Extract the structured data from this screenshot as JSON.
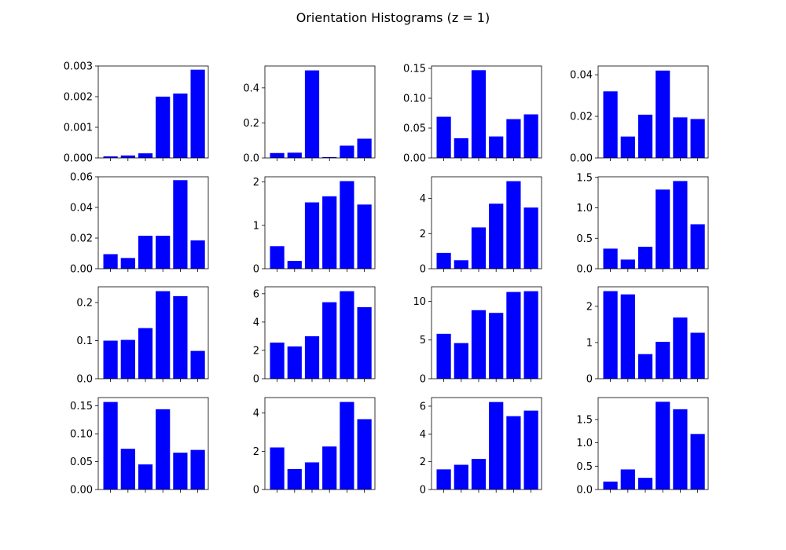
{
  "figure": {
    "title": "Orientation Histograms (z = 1)",
    "bar_color": "#0000ff",
    "rows": 4,
    "cols": 4
  },
  "chart_data": [
    {
      "type": "bar",
      "values": [
        5e-05,
        8e-05,
        0.00015,
        0.002,
        0.0021,
        0.00288
      ],
      "ylim": [
        0,
        0.003
      ],
      "yticks": [
        0,
        0.001,
        0.002,
        0.003
      ],
      "ytick_labels": [
        "0.000",
        "0.001",
        "0.002",
        "0.003"
      ]
    },
    {
      "type": "bar",
      "values": [
        0.028,
        0.03,
        0.5,
        0.005,
        0.07,
        0.11
      ],
      "ylim": [
        0,
        0.525
      ],
      "yticks": [
        0,
        0.2,
        0.4
      ],
      "ytick_labels": [
        "0.0",
        "0.2",
        "0.4"
      ]
    },
    {
      "type": "bar",
      "values": [
        0.069,
        0.033,
        0.147,
        0.036,
        0.065,
        0.073
      ],
      "ylim": [
        0,
        0.154
      ],
      "yticks": [
        0,
        0.05,
        0.1,
        0.15
      ],
      "ytick_labels": [
        "0.00",
        "0.05",
        "0.10",
        "0.15"
      ]
    },
    {
      "type": "bar",
      "values": [
        0.032,
        0.0103,
        0.0208,
        0.042,
        0.0195,
        0.0187
      ],
      "ylim": [
        0,
        0.0442
      ],
      "yticks": [
        0,
        0.02,
        0.04
      ],
      "ytick_labels": [
        "0.00",
        "0.02",
        "0.04"
      ]
    },
    {
      "type": "bar",
      "values": [
        0.0095,
        0.007,
        0.0215,
        0.0215,
        0.0578,
        0.0185
      ],
      "ylim": [
        0,
        0.06
      ],
      "yticks": [
        0,
        0.02,
        0.04,
        0.06
      ],
      "ytick_labels": [
        "0.00",
        "0.02",
        "0.04",
        "0.06"
      ]
    },
    {
      "type": "bar",
      "values": [
        0.52,
        0.18,
        1.53,
        1.67,
        2.02,
        1.48
      ],
      "ylim": [
        0,
        2.12
      ],
      "yticks": [
        0,
        1,
        2
      ],
      "ytick_labels": [
        "0",
        "1",
        "2"
      ]
    },
    {
      "type": "bar",
      "values": [
        0.9,
        0.48,
        2.35,
        3.7,
        4.98,
        3.48
      ],
      "ylim": [
        0,
        5.23
      ],
      "yticks": [
        0,
        2,
        4
      ],
      "ytick_labels": [
        "0",
        "2",
        "4"
      ]
    },
    {
      "type": "bar",
      "values": [
        0.33,
        0.15,
        0.36,
        1.3,
        1.44,
        0.73
      ],
      "ylim": [
        0,
        1.51
      ],
      "yticks": [
        0,
        0.5,
        1.0,
        1.5
      ],
      "ytick_labels": [
        "0.0",
        "0.5",
        "1.0",
        "1.5"
      ]
    },
    {
      "type": "bar",
      "values": [
        0.1,
        0.102,
        0.133,
        0.23,
        0.217,
        0.073
      ],
      "ylim": [
        0,
        0.2415
      ],
      "yticks": [
        0,
        0.1,
        0.2
      ],
      "ytick_labels": [
        "0.0",
        "0.1",
        "0.2"
      ]
    },
    {
      "type": "bar",
      "values": [
        2.55,
        2.28,
        3.0,
        5.4,
        6.18,
        5.05
      ],
      "ylim": [
        0,
        6.49
      ],
      "yticks": [
        0,
        2,
        4,
        6
      ],
      "ytick_labels": [
        "0",
        "2",
        "4",
        "6"
      ]
    },
    {
      "type": "bar",
      "values": [
        5.8,
        4.6,
        8.85,
        8.5,
        11.2,
        11.3
      ],
      "ylim": [
        0,
        11.87
      ],
      "yticks": [
        0,
        5,
        10
      ],
      "ytick_labels": [
        "0",
        "5",
        "10"
      ]
    },
    {
      "type": "bar",
      "values": [
        2.42,
        2.33,
        0.68,
        1.02,
        1.69,
        1.27
      ],
      "ylim": [
        0,
        2.54
      ],
      "yticks": [
        0,
        1,
        2
      ],
      "ytick_labels": [
        "0",
        "1",
        "2"
      ]
    },
    {
      "type": "bar",
      "values": [
        0.157,
        0.073,
        0.045,
        0.144,
        0.066,
        0.071
      ],
      "ylim": [
        0,
        0.1649
      ],
      "yticks": [
        0,
        0.05,
        0.1,
        0.15
      ],
      "ytick_labels": [
        "0.00",
        "0.05",
        "0.10",
        "0.15"
      ]
    },
    {
      "type": "bar",
      "values": [
        2.2,
        1.07,
        1.42,
        2.25,
        4.58,
        3.68
      ],
      "ylim": [
        0,
        4.81
      ],
      "yticks": [
        0,
        2,
        4
      ],
      "ytick_labels": [
        "0",
        "2",
        "4"
      ]
    },
    {
      "type": "bar",
      "values": [
        1.45,
        1.78,
        2.2,
        6.3,
        5.28,
        5.68
      ],
      "ylim": [
        0,
        6.62
      ],
      "yticks": [
        0,
        2,
        4,
        6
      ],
      "ytick_labels": [
        "0",
        "2",
        "4",
        "6"
      ]
    },
    {
      "type": "bar",
      "values": [
        0.17,
        0.43,
        0.25,
        1.88,
        1.72,
        1.19
      ],
      "ylim": [
        0,
        1.97
      ],
      "yticks": [
        0,
        0.5,
        1.0,
        1.5
      ],
      "ytick_labels": [
        "0.0",
        "0.5",
        "1.0",
        "1.5"
      ]
    }
  ]
}
